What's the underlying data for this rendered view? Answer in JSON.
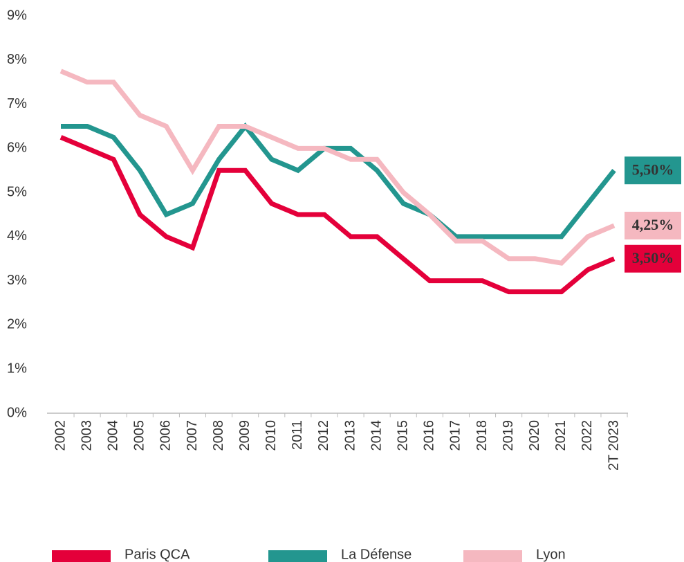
{
  "chart_data": {
    "type": "line",
    "categories": [
      "2002",
      "2003",
      "2004",
      "2005",
      "2006",
      "2007",
      "2008",
      "2009",
      "2010",
      "2011",
      "2012",
      "2013",
      "2014",
      "2015",
      "2016",
      "2017",
      "2018",
      "2019",
      "2020",
      "2021",
      "2022",
      "2T 2023"
    ],
    "series": [
      {
        "name": "Paris QCA",
        "color": "#e4003a",
        "label_text_color": "#ffffff",
        "values": [
          6.25,
          6.0,
          5.75,
          4.5,
          4.0,
          3.75,
          5.5,
          5.5,
          4.75,
          4.5,
          4.5,
          4.0,
          4.0,
          3.5,
          3.0,
          3.0,
          3.0,
          2.75,
          2.75,
          2.75,
          3.25,
          3.5
        ],
        "value_labels": [
          null,
          null,
          null,
          null,
          null,
          null,
          null,
          null,
          null,
          null,
          null,
          null,
          null,
          null,
          null,
          null,
          null,
          null,
          null,
          null,
          null,
          "3,50%"
        ]
      },
      {
        "name": "La Défense",
        "color": "#23968f",
        "label_text_color": "#ffffff",
        "values": [
          6.5,
          6.5,
          6.25,
          5.5,
          4.5,
          4.75,
          5.75,
          6.5,
          5.75,
          5.5,
          6.0,
          6.0,
          5.5,
          4.75,
          4.5,
          4.0,
          4.0,
          4.0,
          4.0,
          4.0,
          4.75,
          5.5
        ],
        "value_labels": [
          null,
          null,
          null,
          null,
          null,
          null,
          null,
          null,
          null,
          null,
          null,
          null,
          null,
          null,
          null,
          null,
          null,
          null,
          null,
          null,
          null,
          "5,50%"
        ]
      },
      {
        "name": "Lyon",
        "color": "#f5b8c0",
        "label_text_color": "#333333",
        "values": [
          7.75,
          7.5,
          7.5,
          6.75,
          6.5,
          5.5,
          6.5,
          6.5,
          6.25,
          6.0,
          6.0,
          5.75,
          5.75,
          5.0,
          4.5,
          3.9,
          3.9,
          3.5,
          3.5,
          3.4,
          4.0,
          4.25
        ],
        "value_labels": [
          null,
          null,
          null,
          null,
          null,
          null,
          null,
          null,
          null,
          null,
          null,
          null,
          null,
          null,
          null,
          null,
          null,
          null,
          null,
          null,
          null,
          "4,25%"
        ]
      }
    ],
    "ylim": [
      0,
      9
    ],
    "yticks": [
      {
        "value": 0,
        "label": "0%"
      },
      {
        "value": 1,
        "label": "1%"
      },
      {
        "value": 2,
        "label": "2%"
      },
      {
        "value": 3,
        "label": "3%"
      },
      {
        "value": 4,
        "label": "4%"
      },
      {
        "value": 5,
        "label": "5%"
      },
      {
        "value": 6,
        "label": "6%"
      },
      {
        "value": 7,
        "label": "7%"
      },
      {
        "value": 8,
        "label": "8%"
      },
      {
        "value": 9,
        "label": "9%"
      }
    ],
    "grid": false,
    "legend": "bottom"
  }
}
